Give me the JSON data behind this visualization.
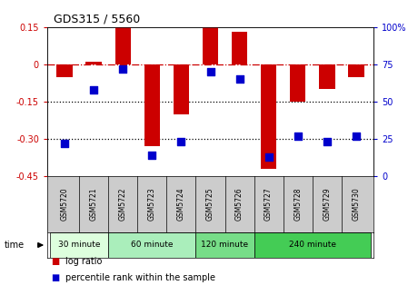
{
  "title": "GDS315 / 5560",
  "samples": [
    "GSM5720",
    "GSM5721",
    "GSM5722",
    "GSM5723",
    "GSM5724",
    "GSM5725",
    "GSM5726",
    "GSM5727",
    "GSM5728",
    "GSM5729",
    "GSM5730"
  ],
  "log_ratio": [
    -0.05,
    0.01,
    0.15,
    -0.33,
    -0.2,
    0.15,
    0.13,
    -0.42,
    -0.15,
    -0.1,
    -0.05
  ],
  "percentile_rank": [
    22,
    58,
    72,
    14,
    23,
    70,
    65,
    13,
    27,
    23,
    27
  ],
  "bar_color": "#cc0000",
  "dot_color": "#0000cc",
  "ylim": [
    -0.45,
    0.15
  ],
  "y_left_ticks": [
    0.15,
    0.0,
    -0.15,
    -0.3,
    -0.45
  ],
  "y_left_labels": [
    "0.15",
    "0",
    "-0.15",
    "-0.30",
    "-0.45"
  ],
  "y_right_ticks": [
    100,
    75,
    50,
    25,
    0
  ],
  "hlines_dotted": [
    -0.15,
    -0.3
  ],
  "hline_dashdot": 0.0,
  "groups": [
    {
      "label": "30 minute",
      "start": 0,
      "end": 2,
      "color": "#ddffdd"
    },
    {
      "label": "60 minute",
      "start": 2,
      "end": 5,
      "color": "#aaeebb"
    },
    {
      "label": "120 minute",
      "start": 5,
      "end": 7,
      "color": "#77dd88"
    },
    {
      "label": "240 minute",
      "start": 7,
      "end": 11,
      "color": "#44cc55"
    }
  ],
  "time_label": "time",
  "legend_items": [
    {
      "label": "log ratio",
      "color": "#cc0000"
    },
    {
      "label": "percentile rank within the sample",
      "color": "#0000cc"
    }
  ],
  "bg_color": "#ffffff",
  "bar_width": 0.55,
  "dot_size": 28,
  "label_bg": "#cccccc"
}
